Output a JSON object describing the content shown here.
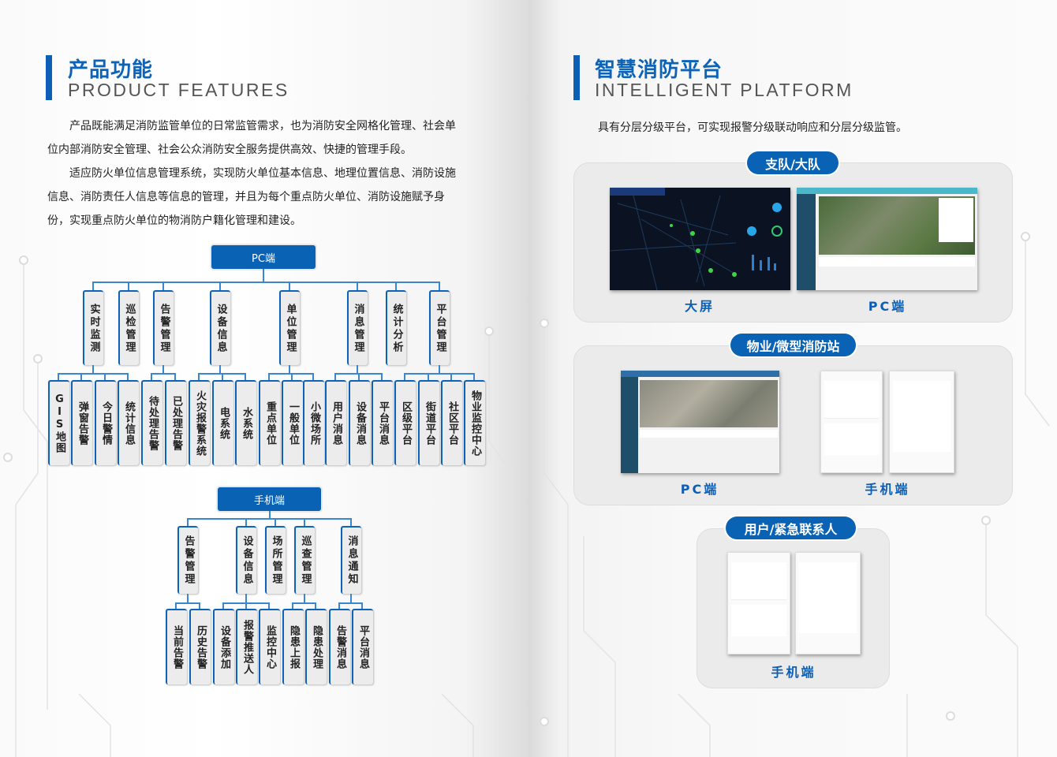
{
  "left": {
    "title_cn": "产品功能",
    "title_en": "PRODUCT FEATURES",
    "paragraph_lines": [
      "　　产品既能满足消防监管单位的日常监管需求，也为消防安全网格化管理、社会单",
      "位内部消防安全管理、社会公众消防安全服务提供高效、快捷的管理手段。",
      "　　适应防火单位信息管理系统，实现防火单位基本信息、地理位置信息、消防设施",
      "信息、消防责任人信息等信息的管理，并且为每个重点防火单位、消防设施赋予身",
      "份，实现重点防火单位的物消防户籍化管理和建设。"
    ],
    "pc_tree": {
      "root": "PC端",
      "groups": [
        {
          "label": "实时监测",
          "children": [
            "GIS地图",
            "弹窗告警",
            "今日警情",
            "统计信息"
          ]
        },
        {
          "label": "巡检管理",
          "children": []
        },
        {
          "label": "告警管理",
          "children": [
            "待处理告警",
            "已处理告警"
          ]
        },
        {
          "label": "设备信息",
          "children": [
            "火灾报警系统",
            "电系统",
            "水系统"
          ]
        },
        {
          "label": "单位管理",
          "children": [
            "重点单位",
            "一般单位",
            "小微场所"
          ]
        },
        {
          "label": "消息管理",
          "children": [
            "用户消息",
            "设备消息",
            "平台消息"
          ]
        },
        {
          "label": "统计分析",
          "children": []
        },
        {
          "label": "平台管理",
          "children": [
            "区级平台",
            "街道平台",
            "社区平台",
            "物业监控中心"
          ]
        }
      ]
    },
    "mobile_tree": {
      "root": "手机端",
      "groups": [
        {
          "label": "告警管理",
          "children": [
            "当前告警",
            "历史告警"
          ]
        },
        {
          "label": "设备信息",
          "children": [
            "设备添加",
            "报警推送人",
            "监控中心"
          ]
        },
        {
          "label": "场所管理",
          "children": []
        },
        {
          "label": "巡查管理",
          "children": [
            "隐患上报",
            "隐患处理"
          ]
        },
        {
          "label": "消息通知",
          "children": [
            "告警消息",
            "平台消息"
          ]
        }
      ]
    }
  },
  "right": {
    "title_cn": "智慧消防平台",
    "title_en": "INTELLIGENT PLATFORM",
    "description": "具有分层分级平台，可实现报警分级联动响应和分层分级监管。",
    "sections": [
      {
        "pill": "支队/大队",
        "screens": [
          {
            "type": "big-screen",
            "label": "大屏"
          },
          {
            "type": "pc",
            "label": "PC端"
          }
        ]
      },
      {
        "pill": "物业/微型消防站",
        "screens": [
          {
            "type": "pc",
            "label": "PC端"
          },
          {
            "type": "mobile",
            "label": "手机端"
          }
        ]
      },
      {
        "pill": "用户/紧急联系人",
        "screens": [
          {
            "type": "mobile",
            "label": "手机端"
          }
        ]
      }
    ]
  },
  "colors": {
    "accent": "#0a62b4",
    "node_bg": "#ececec",
    "panel_bg": "#ebebeb"
  }
}
